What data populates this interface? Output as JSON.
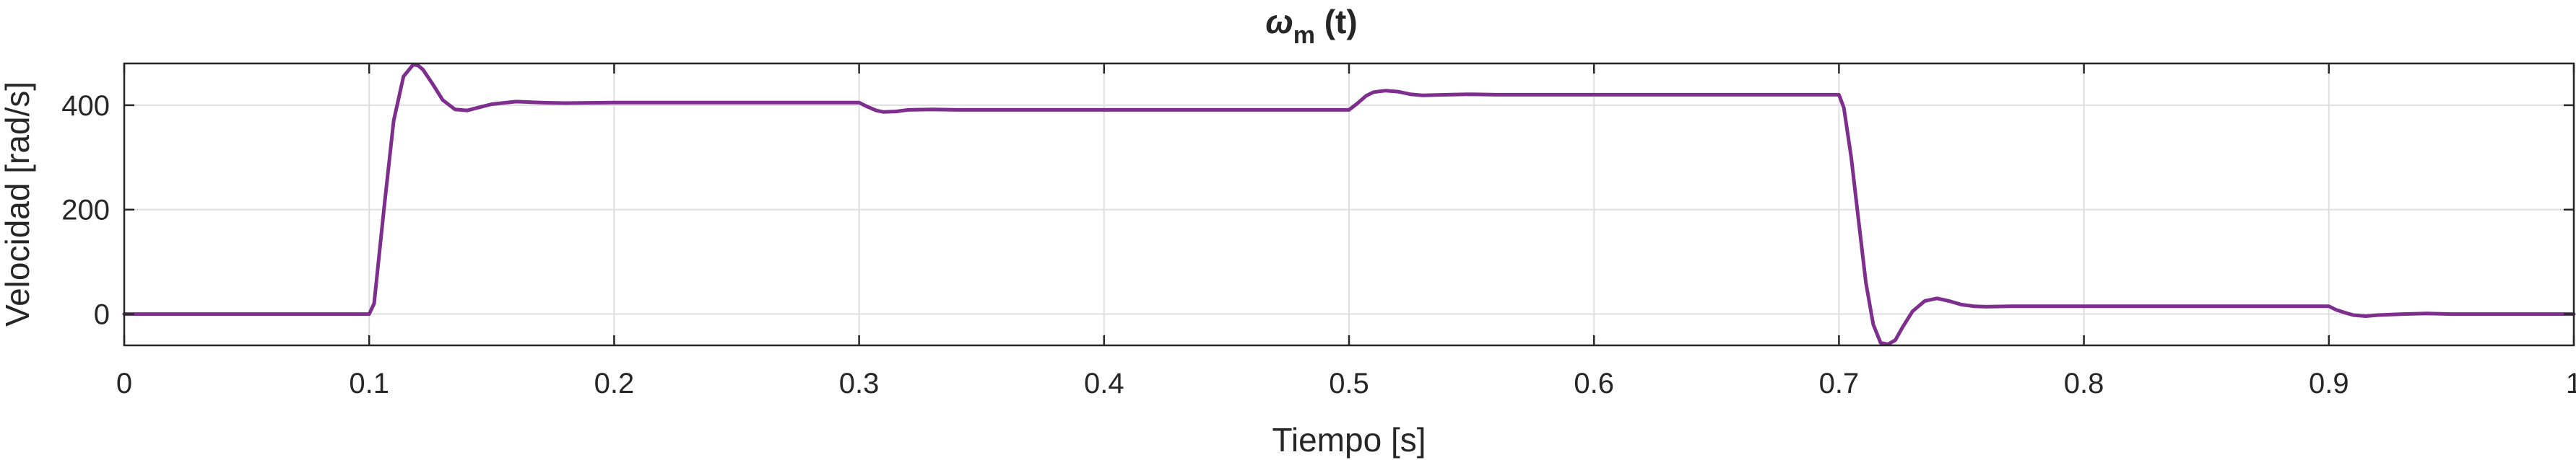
{
  "chart_data": {
    "type": "line",
    "title": "ω_m (t)",
    "title_parts": {
      "symbol": "ω",
      "subscript": "m",
      "argument": " (t)"
    },
    "xlabel": "Tiempo [s]",
    "ylabel": "Velocidad [rad/s]",
    "xlim": [
      0,
      1
    ],
    "ylim": [
      -60,
      480
    ],
    "x_ticks": [
      0,
      0.1,
      0.2,
      0.3,
      0.4,
      0.5,
      0.6,
      0.7,
      0.8,
      0.9,
      1
    ],
    "x_tick_labels": [
      "0",
      "0.1",
      "0.2",
      "0.3",
      "0.4",
      "0.5",
      "0.6",
      "0.7",
      "0.8",
      "0.9",
      "1"
    ],
    "y_ticks": [
      0,
      200,
      400
    ],
    "y_tick_labels": [
      "0",
      "200",
      "400"
    ],
    "grid": true,
    "series": [
      {
        "color": "#7E2F8E",
        "x": [
          0,
          0.1,
          0.102,
          0.106,
          0.11,
          0.114,
          0.118,
          0.12,
          0.122,
          0.126,
          0.13,
          0.135,
          0.14,
          0.145,
          0.15,
          0.16,
          0.17,
          0.18,
          0.2,
          0.25,
          0.3,
          0.303,
          0.307,
          0.31,
          0.315,
          0.32,
          0.33,
          0.34,
          0.36,
          0.4,
          0.45,
          0.5,
          0.503,
          0.507,
          0.51,
          0.515,
          0.52,
          0.525,
          0.53,
          0.54,
          0.55,
          0.56,
          0.6,
          0.65,
          0.7,
          0.702,
          0.705,
          0.708,
          0.711,
          0.714,
          0.717,
          0.72,
          0.723,
          0.726,
          0.73,
          0.735,
          0.74,
          0.745,
          0.75,
          0.755,
          0.76,
          0.77,
          0.78,
          0.8,
          0.85,
          0.9,
          0.903,
          0.907,
          0.91,
          0.915,
          0.92,
          0.93,
          0.94,
          0.95,
          0.97,
          1
        ],
        "y": [
          0,
          0,
          20,
          200,
          370,
          455,
          478,
          476,
          468,
          440,
          410,
          392,
          390,
          396,
          402,
          407,
          405,
          404,
          405,
          405,
          405,
          398,
          390,
          387,
          388,
          391,
          392,
          391,
          391,
          391,
          391,
          391,
          402,
          418,
          425,
          428,
          426,
          421,
          419,
          420,
          421,
          420,
          420,
          420,
          420,
          395,
          300,
          180,
          60,
          -20,
          -55,
          -58,
          -50,
          -25,
          5,
          25,
          30,
          25,
          18,
          15,
          14,
          15,
          15,
          15,
          15,
          15,
          8,
          2,
          -2,
          -4,
          -2,
          0,
          1,
          0,
          0,
          0
        ]
      }
    ]
  }
}
